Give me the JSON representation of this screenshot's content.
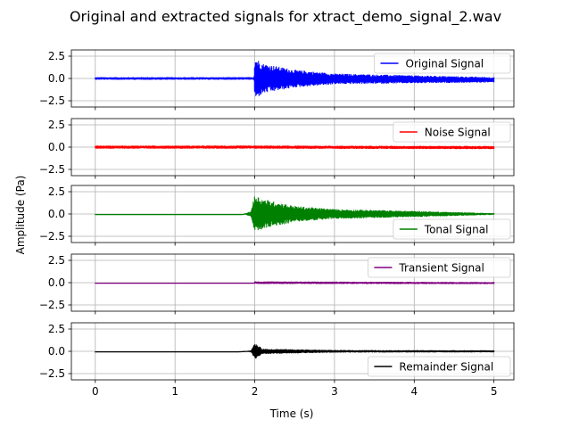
{
  "chart_data": {
    "type": "line",
    "title": "Original and extracted signals for xtract_demo_signal_2.wav",
    "xlabel": "Time (s)",
    "ylabel": "Amplitude (Pa)",
    "xlim": [
      -0.3,
      5.25
    ],
    "ylim": [
      -3.2,
      3.2
    ],
    "x_ticks": [
      0,
      1,
      2,
      3,
      4,
      5
    ],
    "x_tick_labels": [
      "0",
      "1",
      "2",
      "3",
      "4",
      "5"
    ],
    "y_ticks": [
      -2.5,
      0.0,
      2.5
    ],
    "y_tick_labels": [
      "−2.5",
      "0.0",
      "2.5"
    ],
    "grid": true,
    "legend_placement": "right",
    "panels": [
      {
        "legend": "Original Signal",
        "color": "#0000ff",
        "legend_pos": "upper right",
        "envelope": [
          {
            "t": 0.0,
            "amp": 0.15
          },
          {
            "t": 1.99,
            "amp": 0.15
          },
          {
            "t": 2.0,
            "amp": 2.4
          },
          {
            "t": 2.1,
            "amp": 1.7
          },
          {
            "t": 2.5,
            "amp": 1.0
          },
          {
            "t": 3.0,
            "amp": 0.6
          },
          {
            "t": 4.0,
            "amp": 0.45
          },
          {
            "t": 5.0,
            "amp": 0.3
          }
        ],
        "tail_offset": -0.15
      },
      {
        "legend": "Noise Signal",
        "color": "#ff0000",
        "legend_pos": "upper right",
        "envelope": [
          {
            "t": 0.0,
            "amp": 0.18
          },
          {
            "t": 5.0,
            "amp": 0.18
          }
        ],
        "tail_offset": -0.05
      },
      {
        "legend": "Tonal Signal",
        "color": "#008000",
        "legend_pos": "lower right",
        "envelope": [
          {
            "t": 0.0,
            "amp": 0.0
          },
          {
            "t": 1.85,
            "amp": 0.0
          },
          {
            "t": 1.95,
            "amp": 0.3
          },
          {
            "t": 2.0,
            "amp": 2.2
          },
          {
            "t": 2.1,
            "amp": 1.7
          },
          {
            "t": 2.5,
            "amp": 0.9
          },
          {
            "t": 3.0,
            "amp": 0.55
          },
          {
            "t": 4.0,
            "amp": 0.35
          },
          {
            "t": 5.0,
            "amp": 0.1
          }
        ],
        "tail_offset": 0.0
      },
      {
        "legend": "Transient Signal",
        "color": "#800080",
        "legend_pos": "upper right",
        "envelope": [
          {
            "t": 0.0,
            "amp": 0.0
          },
          {
            "t": 1.99,
            "amp": 0.0
          },
          {
            "t": 2.0,
            "amp": 0.15
          },
          {
            "t": 5.0,
            "amp": 0.12
          }
        ],
        "tail_offset": -0.05
      },
      {
        "legend": "Remainder Signal",
        "color": "#000000",
        "legend_pos": "lower right",
        "envelope": [
          {
            "t": 0.0,
            "amp": 0.0
          },
          {
            "t": 1.8,
            "amp": 0.0
          },
          {
            "t": 1.95,
            "amp": 0.1
          },
          {
            "t": 2.0,
            "amp": 0.9
          },
          {
            "t": 2.1,
            "amp": 0.3
          },
          {
            "t": 3.0,
            "amp": 0.15
          },
          {
            "t": 5.0,
            "amp": 0.12
          }
        ],
        "tail_offset": 0.0
      }
    ]
  }
}
